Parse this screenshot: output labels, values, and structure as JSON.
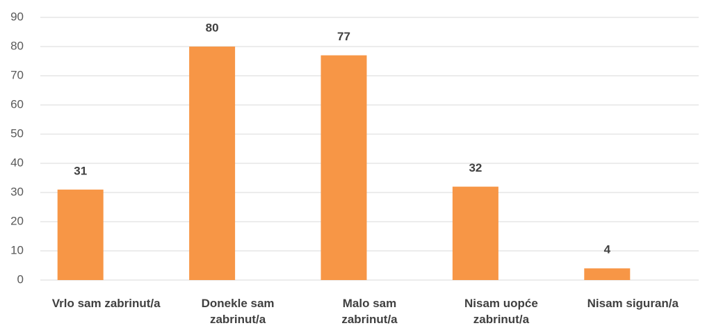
{
  "chart_data": {
    "type": "bar",
    "categories": [
      "Vrlo sam zabrinut/a",
      "Donekle sam zabrinut/a",
      "Malo sam zabrinut/a",
      "Nisam uopće zabrinut/a",
      "Nisam siguran/a"
    ],
    "values": [
      31,
      80,
      77,
      32,
      4
    ],
    "color": "#f79646",
    "ylim": [
      0,
      90
    ],
    "yticks": [
      0,
      10,
      20,
      30,
      40,
      50,
      60,
      70,
      80,
      90
    ],
    "grid": true
  }
}
